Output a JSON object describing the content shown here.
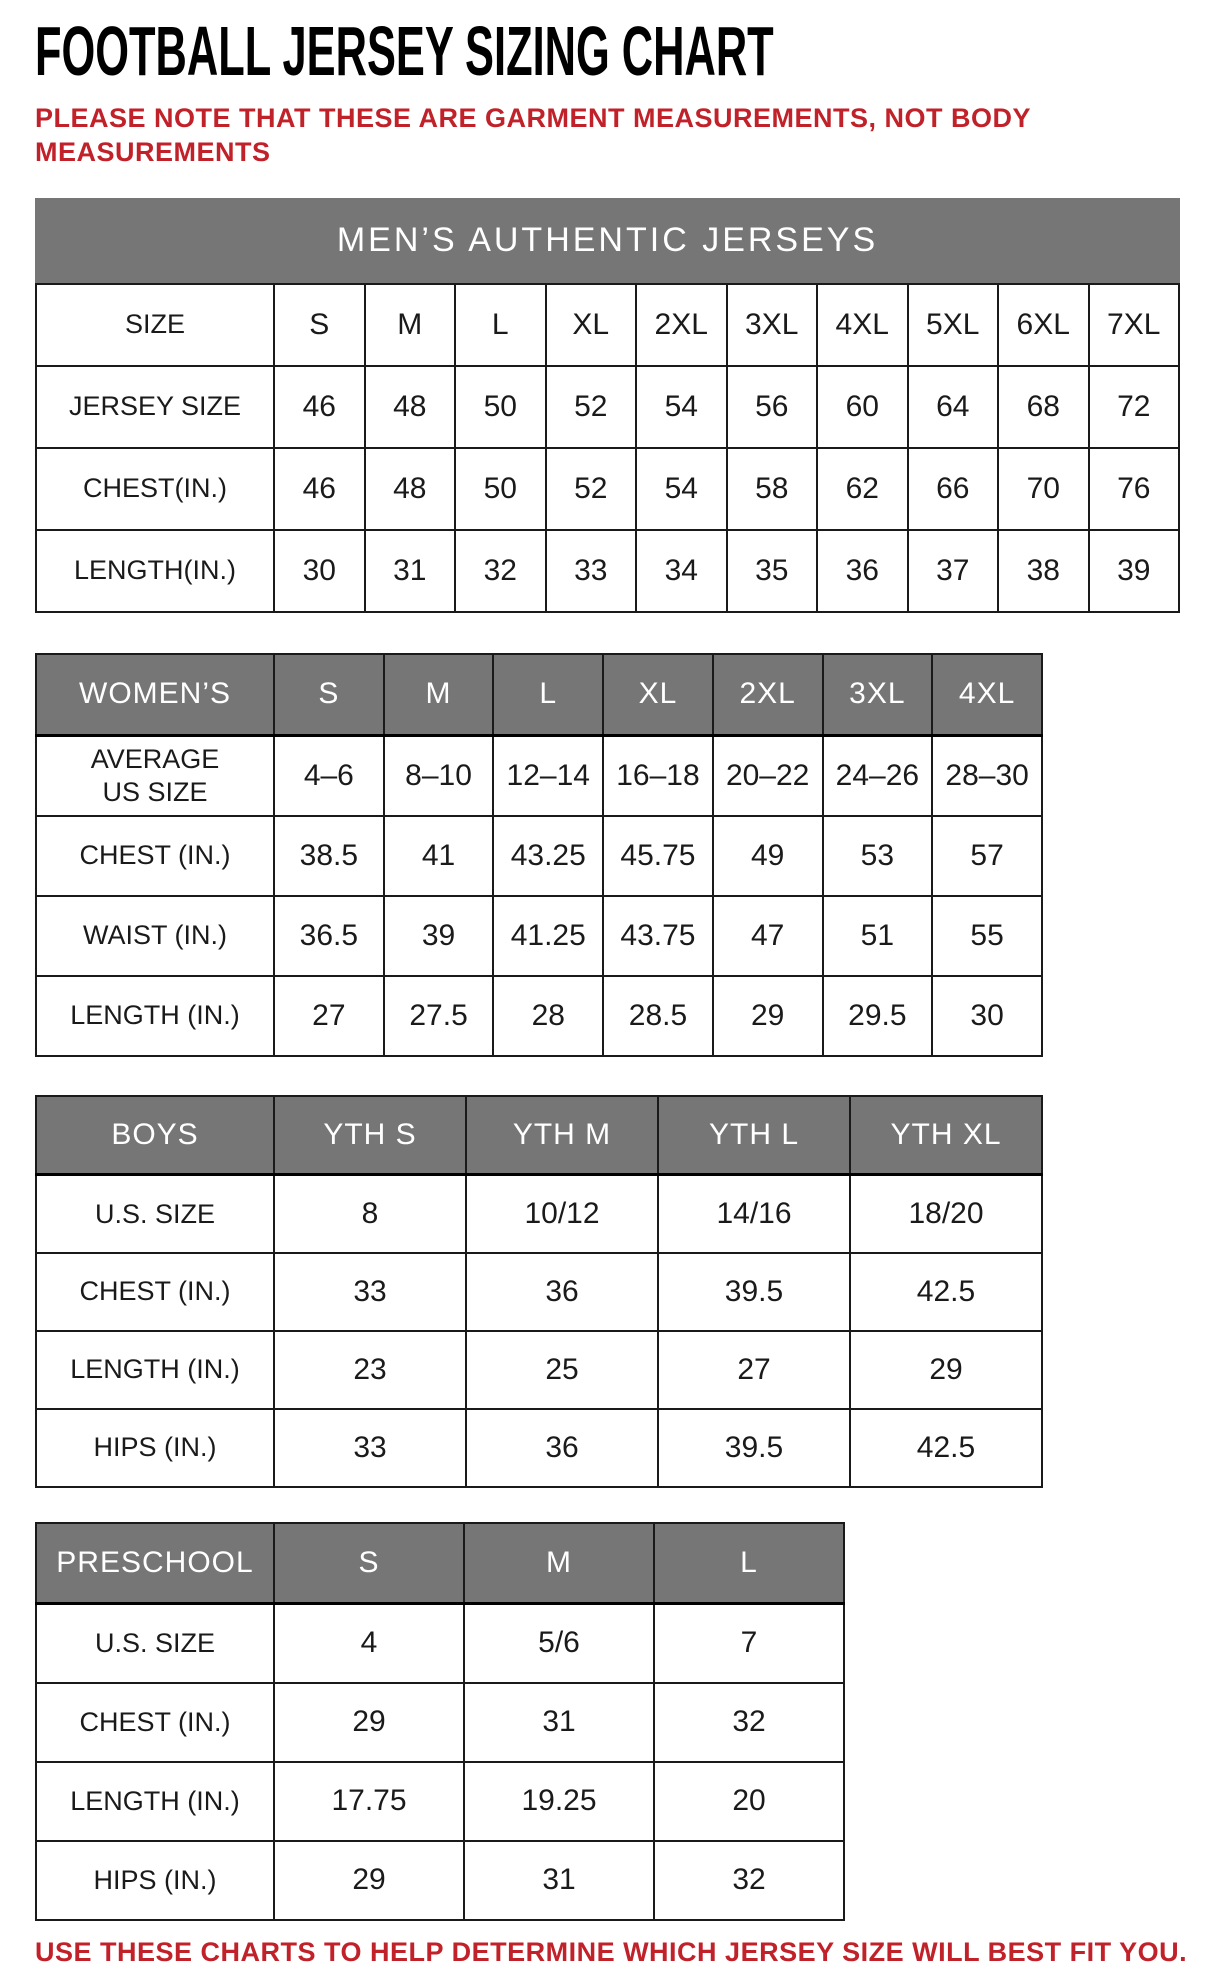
{
  "page": {
    "title": "FOOTBALL JERSEY SIZING CHART",
    "note_line1": "PLEASE NOTE THAT THESE ARE GARMENT MEASUREMENTS, NOT BODY",
    "note_line2": "MEASUREMENTS",
    "footer": "USE THESE CHARTS TO HELP DETERMINE WHICH JERSEY SIZE WILL BEST FIT YOU."
  },
  "colors": {
    "accent_red": "#c1222a",
    "header_gray": "#767676",
    "border_black": "#1a1a1a"
  },
  "tables": [
    {
      "name": "mens-authentic-jerseys",
      "banner": "MEN’S AUTHENTIC JERSEYS",
      "rows": [
        {
          "label": "SIZE",
          "values": [
            "S",
            "M",
            "L",
            "XL",
            "2XL",
            "3XL",
            "4XL",
            "5XL",
            "6XL",
            "7XL"
          ]
        },
        {
          "label": "JERSEY SIZE",
          "values": [
            "46",
            "48",
            "50",
            "52",
            "54",
            "56",
            "60",
            "64",
            "68",
            "72"
          ]
        },
        {
          "label": "CHEST(IN.)",
          "values": [
            "46",
            "48",
            "50",
            "52",
            "54",
            "58",
            "62",
            "66",
            "70",
            "76"
          ]
        },
        {
          "label": "LENGTH(IN.)",
          "values": [
            "30",
            "31",
            "32",
            "33",
            "34",
            "35",
            "36",
            "37",
            "38",
            "39"
          ]
        }
      ]
    },
    {
      "name": "womens-jerseys",
      "header": {
        "label": "WOMEN’S",
        "columns": [
          "S",
          "M",
          "L",
          "XL",
          "2XL",
          "3XL",
          "4XL"
        ]
      },
      "rows": [
        {
          "label": "AVERAGE\nUS SIZE",
          "values": [
            "4–6",
            "8–10",
            "12–14",
            "16–18",
            "20–22",
            "24–26",
            "28–30"
          ]
        },
        {
          "label": "CHEST (IN.)",
          "values": [
            "38.5",
            "41",
            "43.25",
            "45.75",
            "49",
            "53",
            "57"
          ]
        },
        {
          "label": "WAIST (IN.)",
          "values": [
            "36.5",
            "39",
            "41.25",
            "43.75",
            "47",
            "51",
            "55"
          ]
        },
        {
          "label": "LENGTH (IN.)",
          "values": [
            "27",
            "27.5",
            "28",
            "28.5",
            "29",
            "29.5",
            "30"
          ]
        }
      ]
    },
    {
      "name": "boys-jerseys",
      "header": {
        "label": "BOYS",
        "columns": [
          "YTH S",
          "YTH M",
          "YTH L",
          "YTH XL"
        ]
      },
      "rows": [
        {
          "label": "U.S. SIZE",
          "values": [
            "8",
            "10/12",
            "14/16",
            "18/20"
          ]
        },
        {
          "label": "CHEST (IN.)",
          "values": [
            "33",
            "36",
            "39.5",
            "42.5"
          ]
        },
        {
          "label": "LENGTH (IN.)",
          "values": [
            "23",
            "25",
            "27",
            "29"
          ]
        },
        {
          "label": "HIPS (IN.)",
          "values": [
            "33",
            "36",
            "39.5",
            "42.5"
          ]
        }
      ]
    },
    {
      "name": "preschool-jerseys",
      "header": {
        "label": "PRESCHOOL",
        "columns": [
          "S",
          "M",
          "L"
        ]
      },
      "rows": [
        {
          "label": "U.S. SIZE",
          "values": [
            "4",
            "5/6",
            "7"
          ]
        },
        {
          "label": "CHEST (IN.)",
          "values": [
            "29",
            "31",
            "32"
          ]
        },
        {
          "label": "LENGTH (IN.)",
          "values": [
            "17.75",
            "19.25",
            "20"
          ]
        },
        {
          "label": "HIPS (IN.)",
          "values": [
            "29",
            "31",
            "32"
          ]
        }
      ]
    }
  ]
}
